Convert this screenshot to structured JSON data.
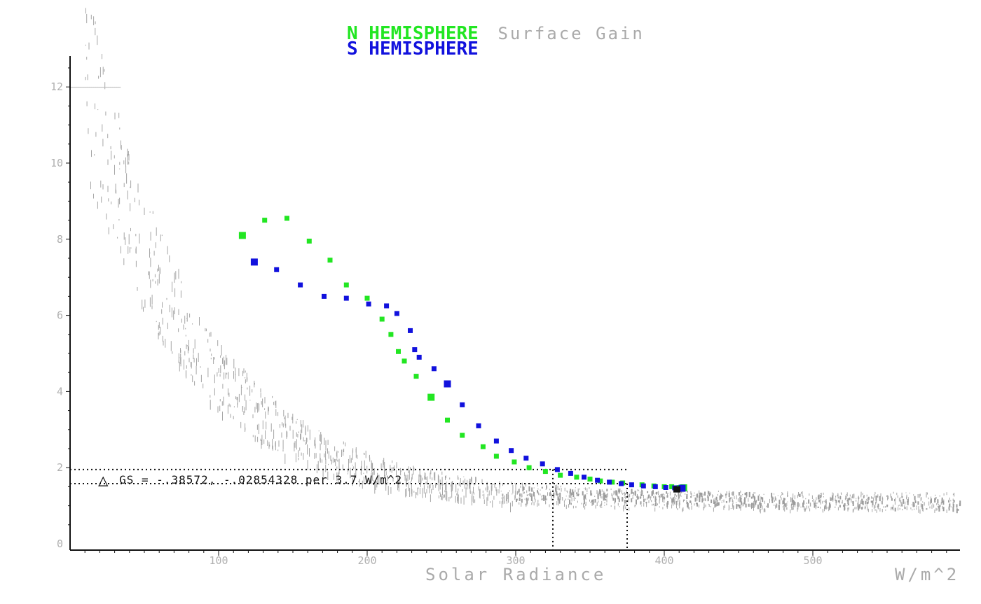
{
  "chart_data": {
    "type": "scatter",
    "title_parts": [
      "N HEMISPHERE",
      "Surface Gain",
      "S HEMISPHERE"
    ],
    "xlabel": "Solar Radiance",
    "xunit": "W/m^2",
    "xlim": [
      0,
      600
    ],
    "ylim": [
      0,
      13
    ],
    "xticks": [
      100,
      200,
      300,
      400,
      500
    ],
    "yticks": [
      0,
      2,
      4,
      6,
      8,
      10,
      12
    ],
    "annotation": {
      "text": "GS = -.38572, -.02854328 per 3.7 W/m^2",
      "symbol": "△",
      "y_lines": [
        1.95,
        1.58
      ],
      "x_lines": [
        325,
        375
      ]
    },
    "series": [
      {
        "name": "N HEMISPHERE",
        "color": "#22e622",
        "x": [
          116,
          131,
          146,
          161,
          175,
          186,
          200,
          210,
          216,
          221,
          225,
          233,
          243,
          254,
          264,
          278,
          287,
          299,
          309,
          320,
          330,
          341,
          350,
          357,
          365,
          372,
          385,
          393,
          400,
          405,
          410,
          413
        ],
        "y": [
          8.1,
          8.5,
          8.55,
          7.95,
          7.45,
          6.8,
          6.45,
          5.9,
          5.5,
          5.05,
          4.8,
          4.4,
          3.85,
          3.25,
          2.85,
          2.55,
          2.3,
          2.15,
          2.0,
          1.9,
          1.8,
          1.75,
          1.7,
          1.65,
          1.62,
          1.6,
          1.55,
          1.52,
          1.5,
          1.5,
          1.48,
          1.47
        ]
      },
      {
        "name": "S HEMISPHERE",
        "color": "#1111dd",
        "x": [
          124,
          139,
          155,
          171,
          186,
          201,
          213,
          220,
          229,
          232,
          235,
          245,
          254,
          264,
          275,
          287,
          297,
          307,
          318,
          328,
          337,
          346,
          355,
          363,
          371,
          378,
          386,
          394,
          401,
          407,
          412
        ],
        "y": [
          7.4,
          7.2,
          6.8,
          6.5,
          6.45,
          6.3,
          6.25,
          6.05,
          5.6,
          5.1,
          4.9,
          4.6,
          4.2,
          3.65,
          3.1,
          2.7,
          2.45,
          2.25,
          2.1,
          1.95,
          1.85,
          1.75,
          1.67,
          1.62,
          1.58,
          1.55,
          1.52,
          1.5,
          1.48,
          1.47,
          1.46
        ]
      }
    ]
  }
}
